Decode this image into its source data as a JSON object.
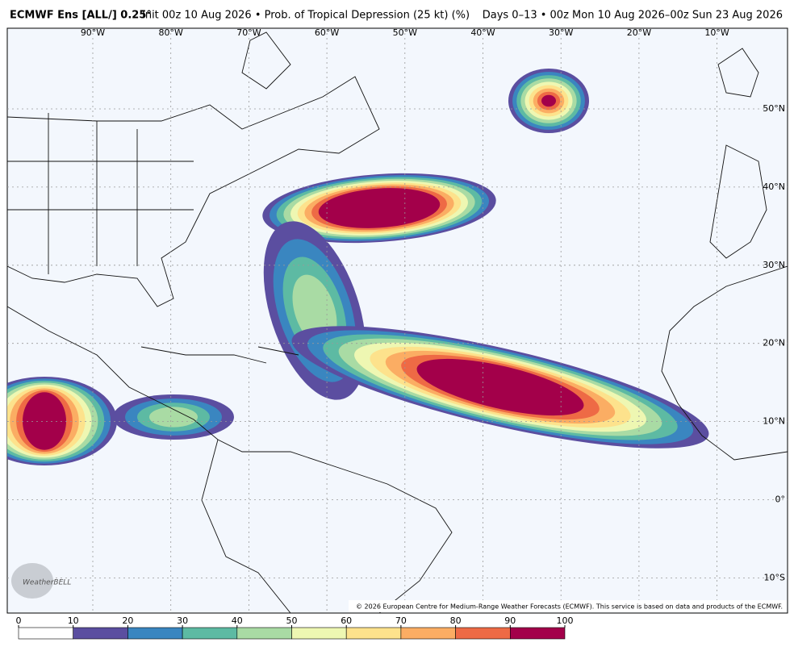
{
  "header": {
    "model": "ECMWF Ens [ALL/] 0.25°",
    "field": "Init 00z 10 Aug 2026 • Prob. of Tropical Depression (25 kt) (%)",
    "valid": "Days 0–13 • 00z Mon 10 Aug 2026–00z Sun 23 Aug 2026"
  },
  "map": {
    "lon_labels": [
      "90°W",
      "80°W",
      "70°W",
      "60°W",
      "50°W",
      "40°W",
      "30°W",
      "20°W",
      "10°W"
    ],
    "lat_labels": [
      "50°N",
      "40°N",
      "30°N",
      "20°N",
      "10°N",
      "0°",
      "10°S"
    ],
    "logo": "WeatherBELL",
    "copyright": "© 2026 European Centre for Medium-Range Weather Forecasts (ECMWF). This service is based on data and products of the ECMWF."
  },
  "colorbar": {
    "ticks": [
      0,
      10,
      20,
      30,
      40,
      50,
      60,
      70,
      80,
      90,
      100
    ],
    "colors": [
      "#ffffff",
      "#5b4ea0",
      "#3a86c0",
      "#5dbaa3",
      "#a9dba4",
      "#eef7b2",
      "#fde28c",
      "#fbad63",
      "#ee6a45",
      "#a3004a"
    ]
  }
}
